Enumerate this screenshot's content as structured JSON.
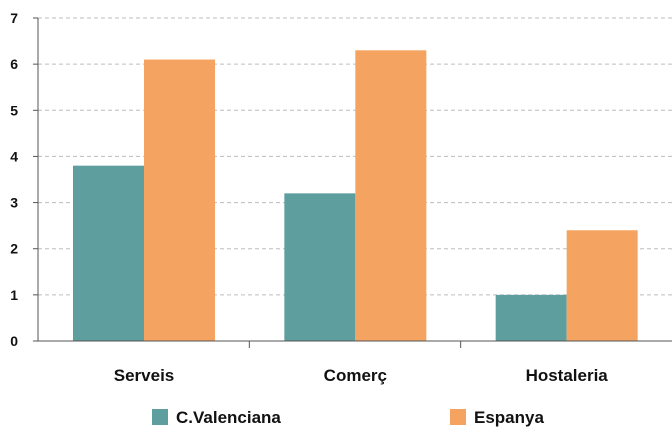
{
  "chart_data": {
    "type": "bar",
    "title": "",
    "xlabel": "",
    "ylabel": "",
    "categories": [
      "Serveis",
      "Comerç",
      "Hostaleria"
    ],
    "series": [
      {
        "name": "C.Valenciana",
        "values": [
          3.8,
          3.2,
          1.0
        ],
        "color": "#5f9e9f"
      },
      {
        "name": "Espanya",
        "values": [
          6.1,
          6.3,
          2.4
        ],
        "color": "#f4a460"
      }
    ],
    "ylim": [
      0,
      7
    ],
    "yticks": [
      0,
      1,
      2,
      3,
      4,
      5,
      6,
      7
    ],
    "grid": true,
    "legend": "bottom"
  }
}
